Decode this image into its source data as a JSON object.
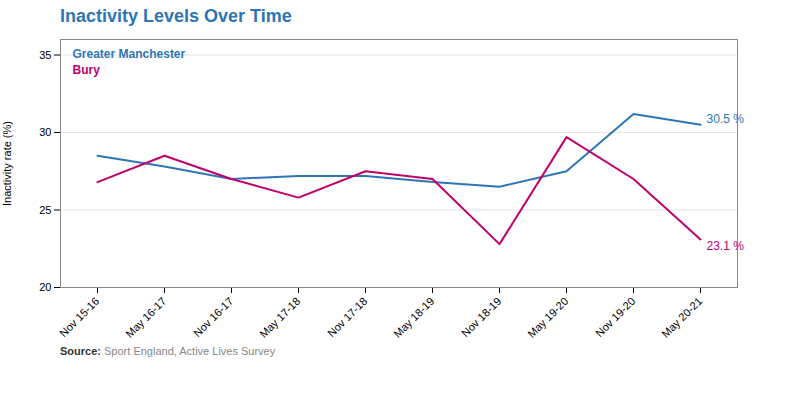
{
  "chart_data": {
    "type": "line",
    "title": "Inactivity Levels Over Time",
    "title_color": "#2e75b6",
    "y_label": "Inactivity rate (%)",
    "source_label": "Source:",
    "source": "Sport England, Active Lives Survey",
    "categories": [
      "Nov 15-16",
      "May 16-17",
      "Nov 16-17",
      "May 17-18",
      "Nov 17-18",
      "May 18-19",
      "Nov 18-19",
      "May 19-20",
      "Nov 19-20",
      "May 20-21"
    ],
    "series": [
      {
        "name": "Greater Manchester",
        "color": "#2e75b6",
        "values": [
          28.5,
          27.8,
          27.0,
          27.2,
          27.2,
          26.8,
          26.5,
          27.5,
          31.2,
          30.5
        ]
      },
      {
        "name": "Bury",
        "color": "#c0006a",
        "values": [
          26.8,
          28.5,
          27.0,
          25.8,
          27.5,
          27.0,
          22.8,
          29.7,
          27.0,
          23.1
        ]
      }
    ],
    "annotations": [
      {
        "text": "30.5 %",
        "x": "May 20-21",
        "y": 30.5,
        "color": "#2e75b6"
      },
      {
        "text": "23.1 %",
        "x": "May 20-21",
        "y": 23.1,
        "color": "#c0006a"
      }
    ],
    "ylim": [
      20,
      36
    ],
    "yticks": [
      20,
      25,
      30,
      35
    ],
    "grid": true
  }
}
